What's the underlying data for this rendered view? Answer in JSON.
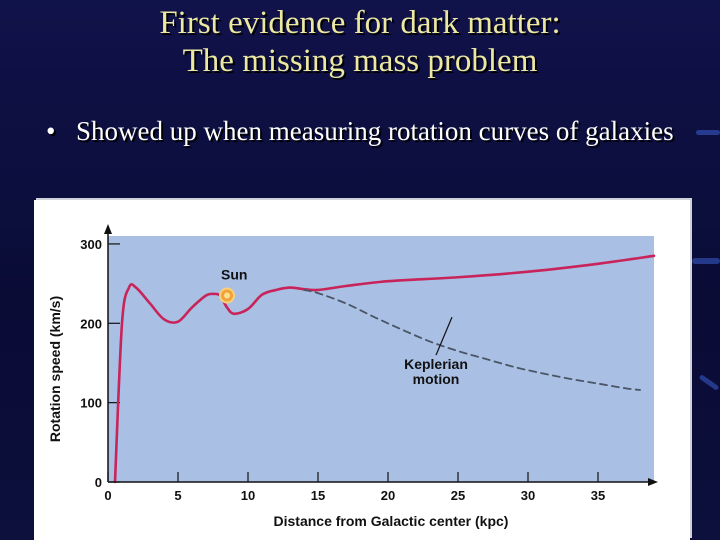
{
  "slide": {
    "title_line1": "First evidence for dark matter:",
    "title_line2": "The missing mass problem",
    "bullet_symbol": "•",
    "bullet_text": "Showed up when measuring rotation curves of galaxies"
  },
  "colors": {
    "slide_bg": "#0d0f3a",
    "title": "#ece8a4",
    "plot_bg": "#a9bfe4",
    "observed_curve": "#c8245a",
    "keplerian_curve": "#4a5566",
    "sun_marker": "#f2a23a"
  },
  "chart_data": {
    "type": "line",
    "title": "",
    "xlabel": "Distance from Galactic center (kpc)",
    "ylabel": "Rotation speed (km/s)",
    "xlim": [
      0,
      39
    ],
    "ylim": [
      0,
      310
    ],
    "xticks": [
      0,
      5,
      10,
      15,
      20,
      25,
      30,
      35
    ],
    "yticks": [
      0,
      100,
      200,
      300
    ],
    "grid": false,
    "series": [
      {
        "name": "",
        "style": "solid",
        "x": [
          0.5,
          1.0,
          1.5,
          2.0,
          3.0,
          4.0,
          5.0,
          6.0,
          7.0,
          7.5,
          8.0,
          8.5,
          9.0,
          10.0,
          11.0,
          12.0,
          13.0,
          14.0,
          15.0,
          17.0,
          20.0,
          25.0,
          30.0,
          35.0,
          39.0
        ],
        "y": [
          0,
          200,
          245,
          245,
          225,
          205,
          202,
          220,
          235,
          237,
          235,
          220,
          212,
          218,
          236,
          242,
          245,
          243,
          242,
          247,
          253,
          258,
          265,
          275,
          285
        ]
      },
      {
        "name": "",
        "style": "dashed",
        "x": [
          14,
          15,
          17,
          19,
          21,
          23,
          25,
          27,
          29,
          31,
          33,
          35,
          37,
          38
        ],
        "y": [
          242,
          238,
          225,
          208,
          192,
          177,
          165,
          155,
          145,
          137,
          130,
          124,
          118,
          116
        ]
      }
    ],
    "annotations": [
      {
        "text": "Sun",
        "x": 8.5,
        "y": 235
      },
      {
        "text_lines": [
          "Keplerian",
          "motion"
        ],
        "x": 24,
        "y": 170
      }
    ]
  }
}
